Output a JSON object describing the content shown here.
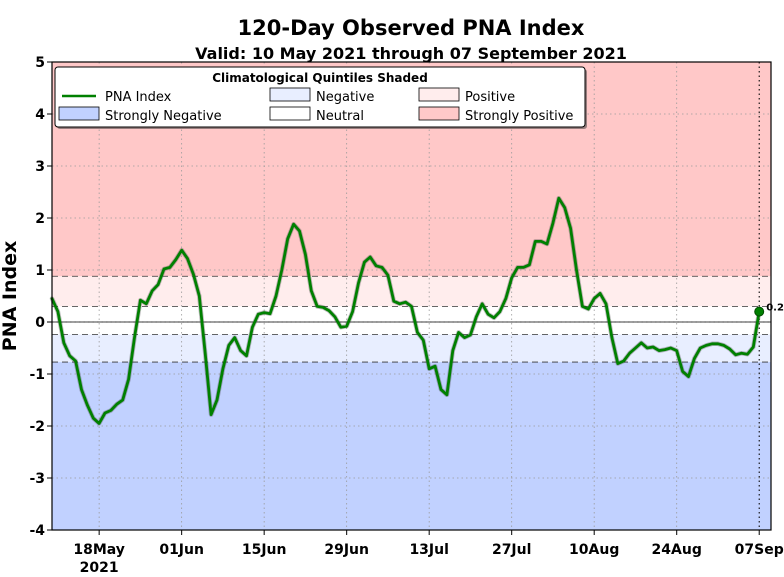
{
  "chart_data": {
    "type": "line",
    "title": "120-Day Observed PNA Index",
    "subtitle": "Valid: 10 May 2021 through 07 September 2021",
    "ylabel": "PNA Index",
    "xlabel": "",
    "ylim": [
      -4,
      5
    ],
    "xlim_days": [
      0,
      122
    ],
    "yticks": [
      5,
      4,
      3,
      2,
      1,
      0,
      -1,
      -2,
      -3,
      -4
    ],
    "xticks": [
      {
        "day": 8,
        "label": "18May",
        "sublabel": "2021"
      },
      {
        "day": 22,
        "label": "01Jun"
      },
      {
        "day": 36,
        "label": "15Jun"
      },
      {
        "day": 50,
        "label": "29Jun"
      },
      {
        "day": 64,
        "label": "13Jul"
      },
      {
        "day": 78,
        "label": "27Jul"
      },
      {
        "day": 92,
        "label": "10Aug"
      },
      {
        "day": 106,
        "label": "24Aug"
      },
      {
        "day": 120,
        "label": "07Sep"
      }
    ],
    "quintile_thresholds": [
      -0.77,
      -0.24,
      0.3,
      0.88
    ],
    "bands": [
      {
        "name": "Strongly Negative",
        "from": -4,
        "to": -0.77,
        "color": "#c1d1ff"
      },
      {
        "name": "Negative",
        "from": -0.77,
        "to": -0.24,
        "color": "#e8eeff"
      },
      {
        "name": "Neutral",
        "from": -0.24,
        "to": 0.3,
        "color": "#ffffff"
      },
      {
        "name": "Positive",
        "from": 0.3,
        "to": 0.88,
        "color": "#ffeded"
      },
      {
        "name": "Strongly Positive",
        "from": 0.88,
        "to": 5,
        "color": "#ffc8c8"
      }
    ],
    "series": [
      {
        "name": "PNA Index",
        "color": "#008000",
        "points": [
          [
            0,
            0.45
          ],
          [
            1,
            0.2
          ],
          [
            2,
            -0.4
          ],
          [
            3,
            -0.65
          ],
          [
            4,
            -0.75
          ],
          [
            5,
            -1.3
          ],
          [
            6,
            -1.6
          ],
          [
            7,
            -1.85
          ],
          [
            8,
            -1.95
          ],
          [
            9,
            -1.75
          ],
          [
            10,
            -1.7
          ],
          [
            11,
            -1.58
          ],
          [
            12,
            -1.5
          ],
          [
            13,
            -1.1
          ],
          [
            14,
            -0.3
          ],
          [
            15,
            0.42
          ],
          [
            16,
            0.35
          ],
          [
            17,
            0.6
          ],
          [
            18,
            0.72
          ],
          [
            19,
            1.02
          ],
          [
            20,
            1.05
          ],
          [
            21,
            1.2
          ],
          [
            22,
            1.38
          ],
          [
            23,
            1.22
          ],
          [
            24,
            0.92
          ],
          [
            25,
            0.5
          ],
          [
            26,
            -0.6
          ],
          [
            27,
            -1.78
          ],
          [
            28,
            -1.5
          ],
          [
            29,
            -0.9
          ],
          [
            30,
            -0.45
          ],
          [
            31,
            -0.3
          ],
          [
            32,
            -0.55
          ],
          [
            33,
            -0.65
          ],
          [
            34,
            -0.1
          ],
          [
            35,
            0.15
          ],
          [
            36,
            0.18
          ],
          [
            37,
            0.16
          ],
          [
            38,
            0.5
          ],
          [
            39,
            1.0
          ],
          [
            40,
            1.6
          ],
          [
            41,
            1.88
          ],
          [
            42,
            1.75
          ],
          [
            43,
            1.3
          ],
          [
            44,
            0.6
          ],
          [
            45,
            0.3
          ],
          [
            46,
            0.28
          ],
          [
            47,
            0.22
          ],
          [
            48,
            0.1
          ],
          [
            49,
            -0.1
          ],
          [
            50,
            -0.08
          ],
          [
            51,
            0.2
          ],
          [
            52,
            0.75
          ],
          [
            53,
            1.15
          ],
          [
            54,
            1.25
          ],
          [
            55,
            1.08
          ],
          [
            56,
            1.05
          ],
          [
            57,
            0.9
          ],
          [
            58,
            0.4
          ],
          [
            59,
            0.35
          ],
          [
            60,
            0.38
          ],
          [
            61,
            0.3
          ],
          [
            62,
            -0.2
          ],
          [
            63,
            -0.35
          ],
          [
            64,
            -0.9
          ],
          [
            65,
            -0.85
          ],
          [
            66,
            -1.3
          ],
          [
            67,
            -1.4
          ],
          [
            68,
            -0.55
          ],
          [
            69,
            -0.2
          ],
          [
            70,
            -0.3
          ],
          [
            71,
            -0.25
          ],
          [
            72,
            0.1
          ],
          [
            73,
            0.35
          ],
          [
            74,
            0.15
          ],
          [
            75,
            0.08
          ],
          [
            76,
            0.2
          ],
          [
            77,
            0.45
          ],
          [
            78,
            0.85
          ],
          [
            79,
            1.05
          ],
          [
            80,
            1.05
          ],
          [
            81,
            1.1
          ],
          [
            82,
            1.55
          ],
          [
            83,
            1.55
          ],
          [
            84,
            1.5
          ],
          [
            85,
            1.9
          ],
          [
            86,
            2.38
          ],
          [
            87,
            2.2
          ],
          [
            88,
            1.8
          ],
          [
            89,
            1.0
          ],
          [
            90,
            0.3
          ],
          [
            91,
            0.25
          ],
          [
            92,
            0.45
          ],
          [
            93,
            0.55
          ],
          [
            94,
            0.35
          ],
          [
            95,
            -0.3
          ],
          [
            96,
            -0.8
          ],
          [
            97,
            -0.75
          ],
          [
            98,
            -0.6
          ],
          [
            99,
            -0.5
          ],
          [
            100,
            -0.4
          ],
          [
            101,
            -0.5
          ],
          [
            102,
            -0.48
          ],
          [
            103,
            -0.55
          ],
          [
            104,
            -0.53
          ],
          [
            105,
            -0.5
          ],
          [
            106,
            -0.55
          ],
          [
            107,
            -0.95
          ],
          [
            108,
            -1.05
          ],
          [
            109,
            -0.7
          ],
          [
            110,
            -0.5
          ],
          [
            111,
            -0.45
          ],
          [
            112,
            -0.42
          ],
          [
            113,
            -0.42
          ],
          [
            114,
            -0.45
          ],
          [
            115,
            -0.52
          ],
          [
            116,
            -0.63
          ],
          [
            117,
            -0.6
          ],
          [
            118,
            -0.62
          ],
          [
            119,
            -0.48
          ],
          [
            120,
            0.2
          ]
        ]
      }
    ],
    "last_value": {
      "day": 120,
      "value": 0.2,
      "label": "0.20"
    },
    "legend": {
      "title": "Climatological Quintiles Shaded",
      "position": "top-left",
      "entries": [
        {
          "label": "PNA Index",
          "kind": "line",
          "color": "#008000"
        },
        {
          "label": "Negative",
          "kind": "patch",
          "color": "#e8eeff"
        },
        {
          "label": "Positive",
          "kind": "patch",
          "color": "#ffeded"
        },
        {
          "label": "Strongly Negative",
          "kind": "patch",
          "color": "#c1d1ff"
        },
        {
          "label": "Neutral",
          "kind": "patch",
          "color": "#ffffff"
        },
        {
          "label": "Strongly Positive",
          "kind": "patch",
          "color": "#ffc8c8"
        }
      ]
    },
    "grid": true
  }
}
